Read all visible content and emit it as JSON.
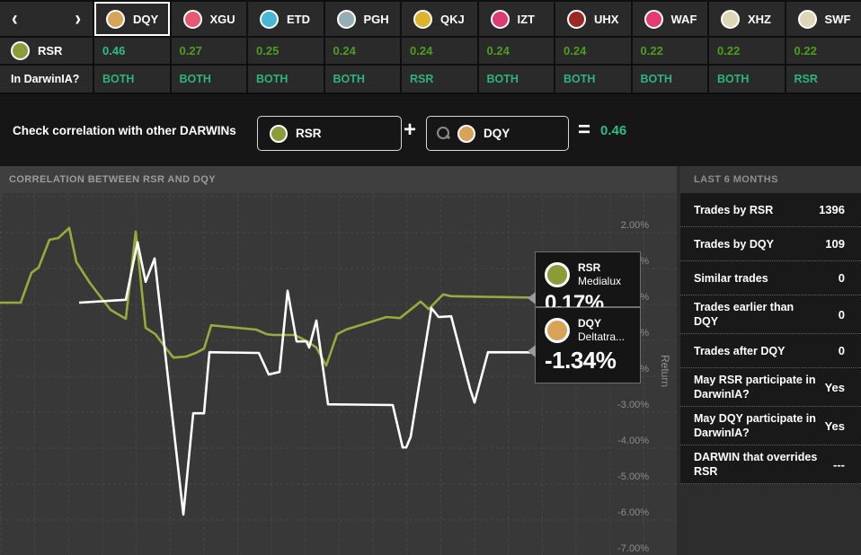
{
  "top_bar": {
    "nav": {
      "prev": "‹",
      "next": "›"
    },
    "base_symbol": {
      "name": "RSR",
      "color": "#8d9c3a"
    },
    "darwinia_row_label": "In DarwinIA?",
    "columns": [
      {
        "symbol": "DQY",
        "color": "#d8a257",
        "correlation": "0.46",
        "darwinia": "BOTH",
        "selected": true
      },
      {
        "symbol": "XGU",
        "color": "#e65971",
        "correlation": "0.27",
        "darwinia": "BOTH",
        "selected": false
      },
      {
        "symbol": "ETD",
        "color": "#49b6d8",
        "correlation": "0.25",
        "darwinia": "BOTH",
        "selected": false
      },
      {
        "symbol": "PGH",
        "color": "#95aeb2",
        "correlation": "0.24",
        "darwinia": "BOTH",
        "selected": false
      },
      {
        "symbol": "QKJ",
        "color": "#dcb32b",
        "correlation": "0.24",
        "darwinia": "RSR",
        "selected": false
      },
      {
        "symbol": "IZT",
        "color": "#de3a74",
        "correlation": "0.24",
        "darwinia": "BOTH",
        "selected": false
      },
      {
        "symbol": "UHX",
        "color": "#9c2823",
        "correlation": "0.24",
        "darwinia": "BOTH",
        "selected": false
      },
      {
        "symbol": "WAF",
        "color": "#e43a70",
        "correlation": "0.22",
        "darwinia": "BOTH",
        "selected": false
      },
      {
        "symbol": "XHZ",
        "color": "#ddd7b5",
        "correlation": "0.22",
        "darwinia": "BOTH",
        "selected": false
      },
      {
        "symbol": "SWF",
        "color": "#ddd7b5",
        "correlation": "0.22",
        "darwinia": "RSR",
        "selected": false
      }
    ],
    "colors": {
      "value_green": "#4d9e1f",
      "value_highlight": "#2dbe85",
      "darwinia_teal": "#2db47c"
    }
  },
  "correlation_bar": {
    "label": "Check correlation with other DARWINs",
    "left_symbol": {
      "name": "RSR",
      "color": "#8d9c3a"
    },
    "plus": "+",
    "search_icon": "magnifier",
    "right_symbol": {
      "name": "DQY",
      "color": "#d8a257"
    },
    "equals": "=",
    "result": "0.46",
    "result_color": "#2dbe85"
  },
  "chart_data": {
    "type": "line",
    "title": "CORRELATION BETWEEN RSR AND DQY",
    "ylabel": "Return",
    "y_unit": "%",
    "ylim": [
      -7.3,
      3.1
    ],
    "y_ticks": [
      "2.00%",
      "1.00%",
      "0.00%",
      "-1.00%",
      "-2.00%",
      "-3.00%",
      "-4.00%",
      "-5.00%",
      "-6.00%",
      "-7.00%"
    ],
    "y_tick_values": [
      2,
      1,
      0,
      -1,
      -2,
      -3,
      -4,
      -5,
      -6,
      -7
    ],
    "grid": "dashed",
    "legend_position": "tooltips-right",
    "series": [
      {
        "name": "RSR",
        "full_name": "Medialux",
        "color": "#9aa93c",
        "last_value": "0.17%",
        "points": [
          [
            0,
            0.05
          ],
          [
            23,
            0.05
          ],
          [
            35,
            0.88
          ],
          [
            43,
            1.03
          ],
          [
            55,
            1.8
          ],
          [
            65,
            1.85
          ],
          [
            77,
            2.13
          ],
          [
            85,
            1.18
          ],
          [
            100,
            0.6
          ],
          [
            123,
            -0.15
          ],
          [
            140,
            -0.4
          ],
          [
            151,
            2.03
          ],
          [
            162,
            -0.65
          ],
          [
            173,
            -0.83
          ],
          [
            185,
            -1.23
          ],
          [
            193,
            -1.48
          ],
          [
            207,
            -1.45
          ],
          [
            218,
            -1.35
          ],
          [
            227,
            -1.23
          ],
          [
            235,
            -0.58
          ],
          [
            285,
            -0.7
          ],
          [
            297,
            -0.83
          ],
          [
            305,
            -0.85
          ],
          [
            328,
            -0.85
          ],
          [
            342,
            -1.03
          ],
          [
            352,
            -1.2
          ],
          [
            363,
            -1.7
          ],
          [
            375,
            -0.83
          ],
          [
            385,
            -0.7
          ],
          [
            430,
            -0.35
          ],
          [
            445,
            -0.38
          ],
          [
            468,
            0.08
          ],
          [
            477,
            -0.13
          ],
          [
            493,
            0.28
          ],
          [
            502,
            0.23
          ],
          [
            640,
            0.17
          ]
        ]
      },
      {
        "name": "DQY",
        "full_name": "Deltatra...",
        "color": "#ffffff",
        "last_value": "-1.34%",
        "points": [
          [
            88,
            0.05
          ],
          [
            140,
            0.13
          ],
          [
            153,
            1.73
          ],
          [
            162,
            0.63
          ],
          [
            172,
            1.28
          ],
          [
            204,
            -5.85
          ],
          [
            215,
            -3.03
          ],
          [
            227,
            -3.03
          ],
          [
            233,
            -1.33
          ],
          [
            288,
            -1.35
          ],
          [
            299,
            -1.95
          ],
          [
            311,
            -1.88
          ],
          [
            320,
            0.38
          ],
          [
            330,
            -1.03
          ],
          [
            341,
            -1.03
          ],
          [
            344,
            -1.2
          ],
          [
            352,
            -0.45
          ],
          [
            365,
            -2.78
          ],
          [
            437,
            -2.8
          ],
          [
            448,
            -3.98
          ],
          [
            452,
            -3.98
          ],
          [
            457,
            -3.68
          ],
          [
            480,
            -0.1
          ],
          [
            488,
            -0.35
          ],
          [
            502,
            -0.33
          ],
          [
            523,
            -2.35
          ],
          [
            528,
            -2.73
          ],
          [
            543,
            -1.33
          ],
          [
            640,
            -1.34
          ]
        ]
      }
    ]
  },
  "tooltips": [
    {
      "symbol": "RSR",
      "full_name": "Medialux",
      "value": "0.17%",
      "color": "#8d9c3a"
    },
    {
      "symbol": "DQY",
      "full_name": "Deltatra...",
      "value": "-1.34%",
      "color": "#d8a257"
    }
  ],
  "side_panel": {
    "header": "LAST 6 MONTHS",
    "rows": [
      {
        "label": "Trades by RSR",
        "value": "1396"
      },
      {
        "label": "Trades by DQY",
        "value": "109"
      },
      {
        "label": "Similar trades",
        "value": "0"
      },
      {
        "label": "Trades earlier than DQY",
        "value": "0"
      },
      {
        "label": "Trades after DQY",
        "value": "0"
      },
      {
        "label": "May RSR participate in DarwinIA?",
        "value": "Yes"
      },
      {
        "label": "May DQY participate in DarwinIA?",
        "value": "Yes"
      },
      {
        "label": "DARWIN that overrides RSR",
        "value": "---"
      }
    ]
  }
}
